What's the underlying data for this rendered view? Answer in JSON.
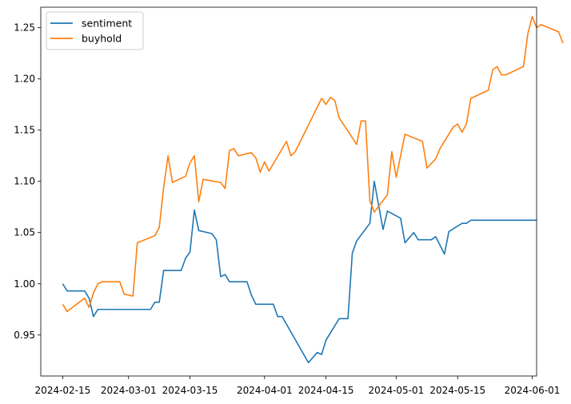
{
  "chart_data": {
    "type": "line",
    "title": "",
    "xlabel": "",
    "ylabel": "",
    "x_axis_type": "date",
    "xlim": [
      "2024-02-10",
      "2024-06-02"
    ],
    "ylim": [
      0.91,
      1.27
    ],
    "x_ticks": [
      "2024-02-15",
      "2024-03-01",
      "2024-03-15",
      "2024-04-01",
      "2024-04-15",
      "2024-05-01",
      "2024-05-15",
      "2024-06-01"
    ],
    "y_ticks": [
      0.95,
      1.0,
      1.05,
      1.1,
      1.15,
      1.2,
      1.25
    ],
    "y_tick_labels": [
      "0.95",
      "1.00",
      "1.05",
      "1.10",
      "1.15",
      "1.20",
      "1.25"
    ],
    "grid": false,
    "legend_position": "top-left",
    "series": [
      {
        "name": "sentiment",
        "color": "#1f77b4",
        "points": [
          [
            "2024-02-15",
            1.0
          ],
          [
            "2024-02-16",
            0.993
          ],
          [
            "2024-02-20",
            0.993
          ],
          [
            "2024-02-21",
            0.986
          ],
          [
            "2024-02-22",
            0.968
          ],
          [
            "2024-02-23",
            0.975
          ],
          [
            "2024-03-06",
            0.975
          ],
          [
            "2024-03-07",
            0.982
          ],
          [
            "2024-03-08",
            0.982
          ],
          [
            "2024-03-09",
            1.013
          ],
          [
            "2024-03-13",
            1.013
          ],
          [
            "2024-03-14",
            1.025
          ],
          [
            "2024-03-15",
            1.031
          ],
          [
            "2024-03-16",
            1.072
          ],
          [
            "2024-03-17",
            1.052
          ],
          [
            "2024-03-20",
            1.049
          ],
          [
            "2024-03-21",
            1.043
          ],
          [
            "2024-03-22",
            1.007
          ],
          [
            "2024-03-23",
            1.009
          ],
          [
            "2024-03-24",
            1.002
          ],
          [
            "2024-03-28",
            1.002
          ],
          [
            "2024-03-29",
            0.989
          ],
          [
            "2024-03-30",
            0.98
          ],
          [
            "2024-04-03",
            0.98
          ],
          [
            "2024-04-04",
            0.968
          ],
          [
            "2024-04-05",
            0.968
          ],
          [
            "2024-04-11",
            0.923
          ],
          [
            "2024-04-13",
            0.933
          ],
          [
            "2024-04-14",
            0.931
          ],
          [
            "2024-04-15",
            0.945
          ],
          [
            "2024-04-18",
            0.966
          ],
          [
            "2024-04-20",
            0.966
          ],
          [
            "2024-04-21",
            1.03
          ],
          [
            "2024-04-22",
            1.042
          ],
          [
            "2024-04-25",
            1.059
          ],
          [
            "2024-04-26",
            1.1
          ],
          [
            "2024-04-28",
            1.053
          ],
          [
            "2024-04-29",
            1.071
          ],
          [
            "2024-05-02",
            1.064
          ],
          [
            "2024-05-03",
            1.04
          ],
          [
            "2024-05-05",
            1.05
          ],
          [
            "2024-05-06",
            1.043
          ],
          [
            "2024-05-09",
            1.043
          ],
          [
            "2024-05-10",
            1.046
          ],
          [
            "2024-05-12",
            1.029
          ],
          [
            "2024-05-13",
            1.051
          ],
          [
            "2024-05-16",
            1.059
          ],
          [
            "2024-05-17",
            1.059
          ],
          [
            "2024-05-18",
            1.062
          ],
          [
            "2024-06-02",
            1.062
          ]
        ]
      },
      {
        "name": "buyhold",
        "color": "#ff7f0e",
        "points": [
          [
            "2024-02-15",
            0.98
          ],
          [
            "2024-02-16",
            0.973
          ],
          [
            "2024-02-20",
            0.986
          ],
          [
            "2024-02-21",
            0.977
          ],
          [
            "2024-02-22",
            0.991
          ],
          [
            "2024-02-23",
            1.0
          ],
          [
            "2024-02-24",
            1.002
          ],
          [
            "2024-02-28",
            1.002
          ],
          [
            "2024-02-29",
            0.99
          ],
          [
            "2024-03-02",
            0.988
          ],
          [
            "2024-03-03",
            1.04
          ],
          [
            "2024-03-07",
            1.047
          ],
          [
            "2024-03-08",
            1.055
          ],
          [
            "2024-03-09",
            1.094
          ],
          [
            "2024-03-10",
            1.125
          ],
          [
            "2024-03-11",
            1.099
          ],
          [
            "2024-03-14",
            1.105
          ],
          [
            "2024-03-15",
            1.118
          ],
          [
            "2024-03-16",
            1.125
          ],
          [
            "2024-03-17",
            1.08
          ],
          [
            "2024-03-18",
            1.102
          ],
          [
            "2024-03-22",
            1.099
          ],
          [
            "2024-03-23",
            1.093
          ],
          [
            "2024-03-24",
            1.13
          ],
          [
            "2024-03-25",
            1.132
          ],
          [
            "2024-03-26",
            1.125
          ],
          [
            "2024-03-29",
            1.128
          ],
          [
            "2024-03-30",
            1.123
          ],
          [
            "2024-03-31",
            1.109
          ],
          [
            "2024-04-01",
            1.119
          ],
          [
            "2024-04-02",
            1.11
          ],
          [
            "2024-04-06",
            1.139
          ],
          [
            "2024-04-07",
            1.125
          ],
          [
            "2024-04-08",
            1.129
          ],
          [
            "2024-04-14",
            1.181
          ],
          [
            "2024-04-15",
            1.175
          ],
          [
            "2024-04-16",
            1.182
          ],
          [
            "2024-04-17",
            1.179
          ],
          [
            "2024-04-18",
            1.162
          ],
          [
            "2024-04-22",
            1.136
          ],
          [
            "2024-04-23",
            1.159
          ],
          [
            "2024-04-24",
            1.159
          ],
          [
            "2024-04-25",
            1.081
          ],
          [
            "2024-04-26",
            1.07
          ],
          [
            "2024-04-29",
            1.087
          ],
          [
            "2024-04-30",
            1.129
          ],
          [
            "2024-05-01",
            1.104
          ],
          [
            "2024-05-02",
            1.125
          ],
          [
            "2024-05-03",
            1.146
          ],
          [
            "2024-05-07",
            1.139
          ],
          [
            "2024-05-08",
            1.113
          ],
          [
            "2024-05-10",
            1.122
          ],
          [
            "2024-05-11",
            1.132
          ],
          [
            "2024-05-14",
            1.153
          ],
          [
            "2024-05-15",
            1.156
          ],
          [
            "2024-05-16",
            1.148
          ],
          [
            "2024-05-17",
            1.156
          ],
          [
            "2024-05-18",
            1.181
          ],
          [
            "2024-05-22",
            1.189
          ],
          [
            "2024-05-23",
            1.209
          ],
          [
            "2024-05-24",
            1.212
          ],
          [
            "2024-05-25",
            1.204
          ],
          [
            "2024-05-26",
            1.204
          ],
          [
            "2024-05-30",
            1.212
          ],
          [
            "2024-05-31",
            1.244
          ],
          [
            "2024-06-01",
            1.261
          ],
          [
            "2024-06-02",
            1.25
          ],
          [
            "2024-06-03",
            1.253
          ],
          [
            "2024-06-07",
            1.246
          ],
          [
            "2024-06-08",
            1.235
          ]
        ]
      }
    ]
  }
}
